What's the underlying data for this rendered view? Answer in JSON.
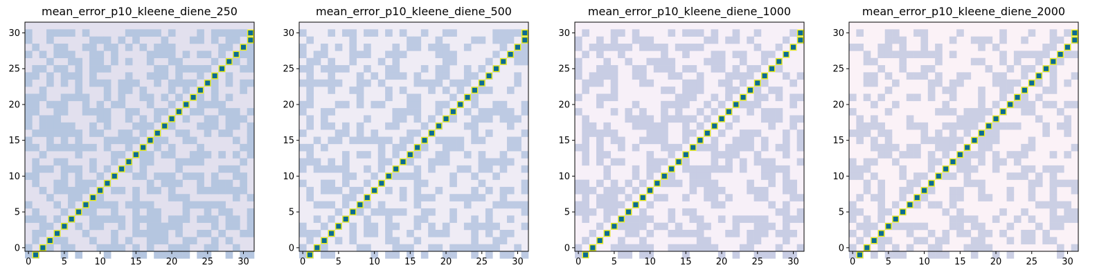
{
  "chart_data": [
    {
      "type": "heatmap",
      "title": "mean_error_p10_kleene_diene_250",
      "size": 32,
      "x_ticks": [
        0,
        5,
        10,
        15,
        20,
        25,
        30
      ],
      "y_ticks": [
        0,
        5,
        10,
        15,
        20,
        25,
        30
      ],
      "xlim": [
        -0.5,
        31.5
      ],
      "ylim": [
        31.5,
        -0.5
      ],
      "colors": {
        "low": "#e2e0ee",
        "high": "#b5c6e0",
        "mask": "#b5c6e0",
        "diagonal": "#0b6b93",
        "diagonal_edge": "#f2f20c"
      },
      "pattern_seed": 250,
      "density": 0.5
    },
    {
      "type": "heatmap",
      "title": "mean_error_p10_kleene_diene_500",
      "size": 32,
      "x_ticks": [
        0,
        5,
        10,
        15,
        20,
        25,
        30
      ],
      "y_ticks": [
        0,
        5,
        10,
        15,
        20,
        25,
        30
      ],
      "xlim": [
        -0.5,
        31.5
      ],
      "ylim": [
        31.5,
        -0.5
      ],
      "colors": {
        "low": "#efecf5",
        "high": "#bdcae3",
        "mask": "#bdcae3",
        "diagonal": "#0b6b93",
        "diagonal_edge": "#f2f20c"
      },
      "pattern_seed": 500,
      "density": 0.45
    },
    {
      "type": "heatmap",
      "title": "mean_error_p10_kleene_diene_1000",
      "size": 32,
      "x_ticks": [
        0,
        5,
        10,
        15,
        20,
        25,
        30
      ],
      "y_ticks": [
        0,
        5,
        10,
        15,
        20,
        25,
        30
      ],
      "xlim": [
        -0.5,
        31.5
      ],
      "ylim": [
        31.5,
        -0.5
      ],
      "colors": {
        "low": "#f7f0f8",
        "high": "#c8cde4",
        "mask": "#c8cde4",
        "diagonal": "#0b6b93",
        "diagonal_edge": "#f2f20c"
      },
      "pattern_seed": 1000,
      "density": 0.45
    },
    {
      "type": "heatmap",
      "title": "mean_error_p10_kleene_diene_2000",
      "size": 32,
      "x_ticks": [
        0,
        5,
        10,
        15,
        20,
        25,
        30
      ],
      "y_ticks": [
        0,
        5,
        10,
        15,
        20,
        25,
        30
      ],
      "xlim": [
        -0.5,
        31.5
      ],
      "ylim": [
        31.5,
        -0.5
      ],
      "colors": {
        "low": "#fbf2f7",
        "high": "#cbcfe4",
        "mask": "#cbcfe4",
        "diagonal": "#0b6b93",
        "diagonal_edge": "#f2f20c"
      },
      "pattern_seed": 2000,
      "density": 0.45
    }
  ]
}
